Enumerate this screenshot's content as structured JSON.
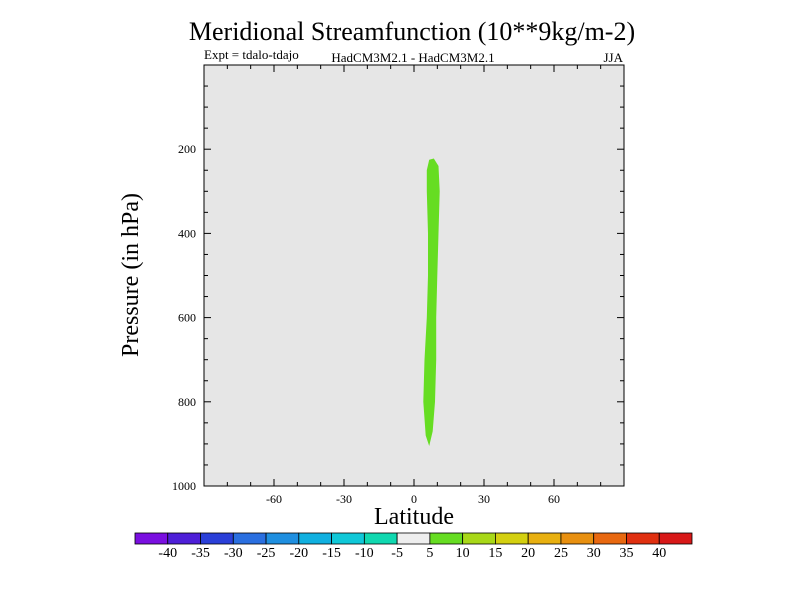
{
  "chart_data": {
    "type": "contour",
    "title": "Meridional Streamfunction (10**9kg/m-2)",
    "subtitle_left": "Expt = tdalo-tdajo",
    "subtitle_center": "HadCM3M2.1 - HadCM3M2.1",
    "subtitle_right": "JJA",
    "xlabel": "Latitude",
    "ylabel": "Pressure (in hPa)",
    "xlim": [
      -90,
      90
    ],
    "ylim": [
      1000,
      0
    ],
    "x_ticks": [
      -60,
      -30,
      0,
      30,
      60
    ],
    "x_tick_labels": [
      "-60",
      "-30",
      "0",
      "30",
      "60"
    ],
    "y_ticks": [
      200,
      400,
      600,
      800,
      1000
    ],
    "y_tick_labels": [
      "200",
      "400",
      "600",
      "800",
      "1000"
    ],
    "background_color": "#e6e6e6",
    "filled_regions": [
      {
        "name": "positive-5-10",
        "level_range": [
          5,
          10
        ],
        "color": "#66dd22",
        "outline": [
          [
            6.5,
            225
          ],
          [
            8.5,
            222
          ],
          [
            10.5,
            240
          ],
          [
            11.0,
            300
          ],
          [
            10.5,
            400
          ],
          [
            10.0,
            500
          ],
          [
            9.5,
            600
          ],
          [
            9.5,
            700
          ],
          [
            9.0,
            800
          ],
          [
            8.0,
            870
          ],
          [
            6.5,
            905
          ],
          [
            5.0,
            880
          ],
          [
            4.0,
            800
          ],
          [
            4.5,
            700
          ],
          [
            5.5,
            600
          ],
          [
            6.0,
            500
          ],
          [
            6.0,
            400
          ],
          [
            5.5,
            300
          ],
          [
            5.5,
            250
          ]
        ]
      }
    ],
    "colorbar": {
      "levels": [
        -40,
        -35,
        -30,
        -25,
        -20,
        -15,
        -10,
        -5,
        5,
        10,
        15,
        20,
        25,
        30,
        35,
        40
      ],
      "level_labels": [
        "-40",
        "-35",
        "-30",
        "-25",
        "-20",
        "-15",
        "-10",
        "-5",
        "5",
        "10",
        "15",
        "20",
        "25",
        "30",
        "35",
        "40"
      ],
      "colors": [
        "#7a0fe0",
        "#4e1fd8",
        "#2a3fd8",
        "#2a6fe0",
        "#1f8fe0",
        "#10b0e0",
        "#10c8d8",
        "#10d8b0",
        "#eeeeee",
        "#66dd22",
        "#a8d818",
        "#d4d010",
        "#e8b010",
        "#e89010",
        "#e86810",
        "#e03010",
        "#d81818"
      ]
    }
  }
}
